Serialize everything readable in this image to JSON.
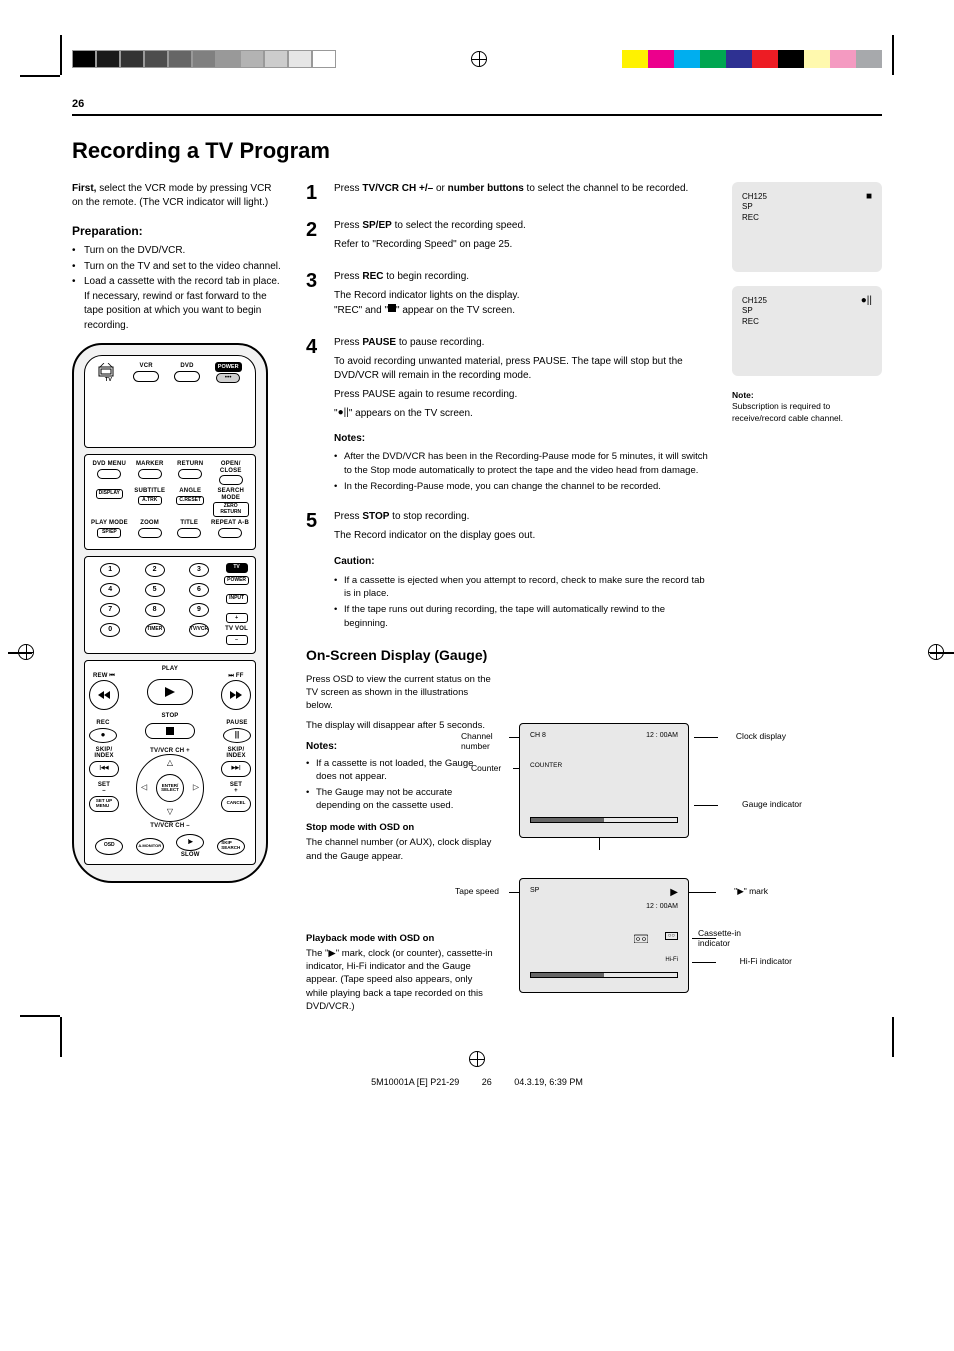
{
  "page_num": "26",
  "title": "Recording a TV Program",
  "intro": {
    "prefix": "First,",
    "text": " select the VCR mode by pressing VCR on the remote. (The VCR indicator will light.)"
  },
  "preparation": {
    "heading": "Preparation:",
    "items": [
      "Turn on the DVD/VCR.",
      "Turn on the TV and set to the video channel.",
      "Load a cassette with the record tab in place. If necessary, rewind or fast forward to the tape position at which you want to begin recording."
    ]
  },
  "remote": {
    "top": {
      "tv": "TV",
      "vcr": "VCR",
      "dvd": "DVD",
      "power": "POWER"
    },
    "r1": [
      "DVD MENU",
      "MARKER",
      "RETURN",
      "OPEN/\nCLOSE"
    ],
    "r2_labels": [
      "",
      "SUBTITLE",
      "ANGLE",
      "SEARCH\nMODE"
    ],
    "r2_btns": [
      "DISPLAY",
      "A.TRK",
      "C.RESET",
      "ZERO\nRETURN"
    ],
    "r3_labels": [
      "PLAY MODE",
      "ZOOM",
      "TITLE",
      "REPEAT A-B"
    ],
    "r3_btns": [
      "SP/EP",
      "",
      "",
      ""
    ],
    "nums": [
      "1",
      "2",
      "3",
      "4",
      "5",
      "6",
      "7",
      "8",
      "9",
      "0"
    ],
    "side": {
      "tv": "TV",
      "power": "POWER",
      "input": "INPUT",
      "plus": "+",
      "tvvol": "TV VOL",
      "minus": "–"
    },
    "timer": "TIMER",
    "tvvcr": "TV/VCR",
    "transport": {
      "play": "PLAY",
      "rew": "REW",
      "ff": "FF",
      "stop": "STOP",
      "rec": "REC",
      "pause": "PAUSE",
      "skip_index_l": "SKIP/\nINDEX",
      "skip_index_r": "SKIP/\nINDEX",
      "set_minus": "SET\n–",
      "set_plus": "SET\n+",
      "ch_plus": "TV/VCR CH +",
      "ch_minus": "TV/VCR CH –",
      "enter": "ENTER/\nSELECT",
      "setup": "SET UP\nMENU",
      "cancel": "CANCEL"
    },
    "bot": {
      "osd": "OSD",
      "amon": "A.MONITOR",
      "slow_btn": "▶",
      "slow": "SLOW",
      "skip_search": "SKIP\nSEARCH"
    }
  },
  "steps": [
    {
      "n": "1",
      "main_prefix": "Press ",
      "main_bold": "TV/VCR CH +/–",
      "main_mid": " or ",
      "main_bold2": "number buttons",
      "main_suffix": " to select the channel to be recorded."
    },
    {
      "n": "2",
      "main_prefix": "Press ",
      "main_bold": "SP/EP",
      "main_suffix": " to select the recording speed.",
      "sub": "Refer to \"Recording Speed\" on page 25."
    },
    {
      "n": "3",
      "main_prefix": "Press ",
      "main_bold": "REC",
      "main_suffix": " to begin recording.",
      "sub": "The Record indicator lights on the display.\n\"REC\" and \"■\" appear on the TV screen."
    },
    {
      "n": "4",
      "main_prefix": "Press ",
      "main_bold": "PAUSE",
      "main_suffix": " to pause recording.",
      "sub1": "To avoid recording unwanted material, press PAUSE. The tape will stop but the DVD/VCR will remain in the recording mode.",
      "sub2": "Press PAUSE again to resume recording.",
      "sub3": "\"●||\" appears on the TV screen.",
      "note_h": "Notes:",
      "notes": [
        "After the DVD/VCR has been in the Recording-Pause mode for 5 minutes, it will switch to the Stop mode automatically to protect the tape and the video head from damage.",
        "In the Recording-Pause mode, you can change the channel to be recorded."
      ]
    },
    {
      "n": "5",
      "main_prefix": "Press ",
      "main_bold": "STOP",
      "main_suffix": " to stop recording.",
      "sub": "The Record indicator on the display goes out.",
      "caution_h": "Caution:",
      "cautions": [
        "If a cassette is ejected when you attempt to record, check to make sure the record tab is in place.",
        "If the tape runs out during recording, the tape will automatically rewind to the beginning."
      ]
    }
  ],
  "screens": [
    {
      "line1": "CH125",
      "line2": "SP",
      "line3": "REC",
      "icon": "■"
    },
    {
      "line1": "CH125",
      "line2": "SP",
      "line3": "REC",
      "icon": "●||"
    }
  ],
  "screen2_note": {
    "h": "Note:",
    "text": "Subscription is required to receive/record cable channel."
  },
  "gauge": {
    "h": "On-Screen Display (Gauge)",
    "p1": "Press OSD to view the current status on the TV screen as shown in the illustrations below.",
    "p2": "The display will disappear after 5 seconds.",
    "note_h": "Notes:",
    "notes": [
      "If a cassette is not loaded, the Gauge does not appear.",
      "The Gauge may not be accurate depending on the cassette used."
    ],
    "stop_h": "Stop mode with OSD on",
    "stop_p": "The channel number (or AUX), clock display and the Gauge appear.",
    "play_h": "Playback mode with OSD on",
    "play_p": "The \"▶\" mark, clock (or counter), cassette-in indicator, Hi-Fi indicator and the Gauge appear. (Tape speed also appears, only while playing back a tape recorded on this DVD/VCR.)"
  },
  "diag_stop": {
    "ch": "CH 8",
    "time": "12 : 00AM",
    "counter": "COUNTER",
    "gauge_fill": 0.5,
    "callouts": {
      "ch": "Channel\nnumber",
      "counter": "Counter",
      "clock": "Clock display",
      "gauge": "Gauge indicator"
    }
  },
  "diag_play": {
    "speed": "SP",
    "time": "12 : 00AM",
    "hifi": "Hi-Fi",
    "gauge_fill": 0.5,
    "callouts": {
      "speed": "Tape speed",
      "mark": "\"▶\" mark",
      "cin": "Cassette-in indicator",
      "hifi": "Hi-Fi indicator"
    }
  },
  "footer": {
    "code": "5M10001A [E] P21-29",
    "page": "26",
    "date": "04.3.19, 6:39 PM"
  },
  "print_grays": [
    "#000000",
    "#1a1a1a",
    "#333333",
    "#4d4d4d",
    "#666666",
    "#808080",
    "#999999",
    "#b3b3b3",
    "#cccccc",
    "#e6e6e6",
    "#ffffff"
  ],
  "print_colors": [
    "#fff200",
    "#ec008c",
    "#00aeef",
    "#00a651",
    "#2e3192",
    "#ed1c24",
    "#000000",
    "#fff9ae",
    "#f49ac1",
    "#a7a9ac"
  ],
  "colors": {
    "screen_bg": "#e8e8e8",
    "remote_bg": "#f2f2f2"
  }
}
